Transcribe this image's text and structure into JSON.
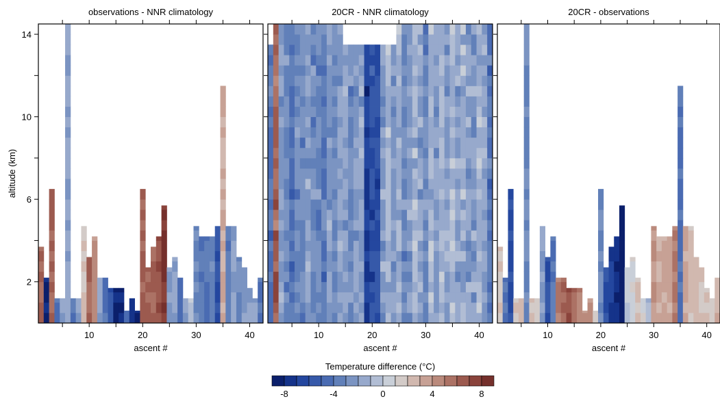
{
  "chart_data": {
    "type": "heatmap",
    "panels": [
      {
        "title": "observations - NNR climatology",
        "xlabel": "ascent #",
        "ylabel": "altitude (km)",
        "xlim": [
          0.5,
          42.5
        ],
        "ylim": [
          0,
          14.5
        ],
        "xticks": [
          10,
          20,
          30,
          40
        ],
        "yticks": [
          2,
          6,
          10,
          14
        ],
        "columns": [
          {
            "x": 1,
            "top": 3.7,
            "base": 6
          },
          {
            "x": 2,
            "top": 2.2,
            "base": -8
          },
          {
            "x": 3,
            "top": 6.5,
            "base": 6
          },
          {
            "x": 4,
            "top": 1.2,
            "base": -4
          },
          {
            "x": 5,
            "top": 1.2,
            "base": -2
          },
          {
            "x": 6,
            "top": 14.5,
            "base": -2
          },
          {
            "x": 7,
            "top": 1.2,
            "base": -4
          },
          {
            "x": 8,
            "top": 1.2,
            "base": -2
          },
          {
            "x": 9,
            "top": 4.7,
            "base": 2
          },
          {
            "x": 10,
            "top": 3.2,
            "base": 6
          },
          {
            "x": 11,
            "top": 4.2,
            "base": 4
          },
          {
            "x": 12,
            "top": 2.2,
            "base": -2
          },
          {
            "x": 13,
            "top": 2.2,
            "base": -4
          },
          {
            "x": 14,
            "top": 1.7,
            "base": -6
          },
          {
            "x": 15,
            "top": 1.7,
            "base": -8
          },
          {
            "x": 16,
            "top": 1.7,
            "base": -8
          },
          {
            "x": 17,
            "top": 0.6,
            "base": -4
          },
          {
            "x": 18,
            "top": 1.2,
            "base": -8
          },
          {
            "x": 19,
            "top": 0.6,
            "base": -8
          },
          {
            "x": 20,
            "top": 6.5,
            "base": 6
          },
          {
            "x": 21,
            "top": 2.7,
            "base": 6
          },
          {
            "x": 22,
            "top": 3.7,
            "base": 6
          },
          {
            "x": 23,
            "top": 4.2,
            "base": 7
          },
          {
            "x": 24,
            "top": 5.7,
            "base": 8
          },
          {
            "x": 25,
            "top": 2.7,
            "base": -2
          },
          {
            "x": 26,
            "top": 3.2,
            "base": -2
          },
          {
            "x": 27,
            "top": 2.2,
            "base": -4
          },
          {
            "x": 28,
            "top": 1.2,
            "base": -2
          },
          {
            "x": 29,
            "top": 1.2,
            "base": 0
          },
          {
            "x": 30,
            "top": 4.7,
            "base": -3
          },
          {
            "x": 31,
            "top": 4.2,
            "base": -4
          },
          {
            "x": 32,
            "top": 4.2,
            "base": -4
          },
          {
            "x": 33,
            "top": 4.2,
            "base": -3
          },
          {
            "x": 34,
            "top": 4.7,
            "base": -6
          },
          {
            "x": 35,
            "top": 11.5,
            "base": 3
          },
          {
            "x": 36,
            "top": 4.7,
            "base": -4
          },
          {
            "x": 37,
            "top": 4.7,
            "base": -2
          },
          {
            "x": 38,
            "top": 3.2,
            "base": -3
          },
          {
            "x": 39,
            "top": 2.7,
            "base": -2
          },
          {
            "x": 40,
            "top": 1.7,
            "base": -2
          },
          {
            "x": 41,
            "top": 1.2,
            "base": -2
          },
          {
            "x": 42,
            "top": 2.2,
            "base": -4
          }
        ]
      },
      {
        "title": "20CR - NNR climatology",
        "xlabel": "ascent #",
        "xlim": [
          0.5,
          42.5
        ],
        "ylim": [
          0,
          14.5
        ],
        "xticks": [
          10,
          20,
          30,
          40
        ],
        "yticks": [
          2,
          6,
          10,
          14
        ],
        "columns": [
          {
            "x": 1,
            "top": 13.5,
            "base": -4
          },
          {
            "x": 2,
            "top": 14.5,
            "base": 6
          },
          {
            "x": 3,
            "top": 14.5,
            "base": -2
          },
          {
            "x": 4,
            "top": 14.5,
            "base": -3
          },
          {
            "x": 5,
            "top": 14.5,
            "base": -4
          },
          {
            "x": 6,
            "top": 14.5,
            "base": -3
          },
          {
            "x": 7,
            "top": 14.5,
            "base": -3
          },
          {
            "x": 8,
            "top": 14.5,
            "base": -2
          },
          {
            "x": 9,
            "top": 14.5,
            "base": -3
          },
          {
            "x": 10,
            "top": 14.5,
            "base": -3
          },
          {
            "x": 11,
            "top": 14.5,
            "base": -4
          },
          {
            "x": 12,
            "top": 14.5,
            "base": -2
          },
          {
            "x": 13,
            "top": 14.5,
            "base": -3
          },
          {
            "x": 14,
            "top": 14.5,
            "base": -2
          },
          {
            "x": 15,
            "top": 13.5,
            "base": -2
          },
          {
            "x": 16,
            "top": 13.5,
            "base": -3
          },
          {
            "x": 17,
            "top": 13.5,
            "base": -2
          },
          {
            "x": 18,
            "top": 13.5,
            "base": -2
          },
          {
            "x": 19,
            "top": 13.5,
            "base": -7
          },
          {
            "x": 20,
            "top": 13.5,
            "base": -6
          },
          {
            "x": 21,
            "top": 13.5,
            "base": -6
          },
          {
            "x": 22,
            "top": 13.5,
            "base": -2
          },
          {
            "x": 23,
            "top": 13.5,
            "base": -1
          },
          {
            "x": 24,
            "top": 13.5,
            "base": -2
          },
          {
            "x": 25,
            "top": 14.5,
            "base": -1
          },
          {
            "x": 26,
            "top": 14.5,
            "base": -3
          },
          {
            "x": 27,
            "top": 14.5,
            "base": -2
          },
          {
            "x": 28,
            "top": 14.5,
            "base": -1
          },
          {
            "x": 29,
            "top": 14.5,
            "base": -2
          },
          {
            "x": 30,
            "top": 14.5,
            "base": -3
          },
          {
            "x": 31,
            "top": 14.5,
            "base": -1
          },
          {
            "x": 32,
            "top": 14.5,
            "base": -2
          },
          {
            "x": 33,
            "top": 14.5,
            "base": -1
          },
          {
            "x": 34,
            "top": 14.5,
            "base": -2
          },
          {
            "x": 35,
            "top": 14.5,
            "base": -1
          },
          {
            "x": 36,
            "top": 14.5,
            "base": -2
          },
          {
            "x": 37,
            "top": 14.5,
            "base": -1
          },
          {
            "x": 38,
            "top": 14.5,
            "base": -2
          },
          {
            "x": 39,
            "top": 14.5,
            "base": -2
          },
          {
            "x": 40,
            "top": 14.5,
            "base": -1
          },
          {
            "x": 41,
            "top": 14.5,
            "base": -2
          },
          {
            "x": 42,
            "top": 14.5,
            "base": -4
          }
        ]
      },
      {
        "title": "20CR - observations",
        "xlabel": "ascent #",
        "xlim": [
          0.5,
          42.5
        ],
        "ylim": [
          0,
          14.5
        ],
        "xticks": [
          10,
          20,
          30,
          40
        ],
        "yticks": [
          2,
          6,
          10,
          14
        ],
        "columns": [
          {
            "x": 1,
            "top": 3.7,
            "base": 2
          },
          {
            "x": 2,
            "top": 2.2,
            "base": -4
          },
          {
            "x": 3,
            "top": 6.5,
            "base": -6
          },
          {
            "x": 4,
            "top": 1.2,
            "base": 2
          },
          {
            "x": 5,
            "top": 1.2,
            "base": 2
          },
          {
            "x": 6,
            "top": 14.5,
            "base": -3
          },
          {
            "x": 7,
            "top": 1.2,
            "base": 2
          },
          {
            "x": 8,
            "top": 1.2,
            "base": 1
          },
          {
            "x": 9,
            "top": 4.7,
            "base": -2
          },
          {
            "x": 10,
            "top": 3.2,
            "base": -6
          },
          {
            "x": 11,
            "top": 4.2,
            "base": -4
          },
          {
            "x": 12,
            "top": 2.2,
            "base": 5
          },
          {
            "x": 13,
            "top": 2.2,
            "base": 6
          },
          {
            "x": 14,
            "top": 1.7,
            "base": 7
          },
          {
            "x": 15,
            "top": 1.7,
            "base": 6
          },
          {
            "x": 16,
            "top": 1.7,
            "base": 5
          },
          {
            "x": 17,
            "top": 0.6,
            "base": 4
          },
          {
            "x": 18,
            "top": 1.2,
            "base": 4
          },
          {
            "x": 19,
            "top": 0.6,
            "base": 2
          },
          {
            "x": 20,
            "top": 6.5,
            "base": -3
          },
          {
            "x": 21,
            "top": 2.7,
            "base": -6
          },
          {
            "x": 22,
            "top": 3.7,
            "base": -7
          },
          {
            "x": 23,
            "top": 4.2,
            "base": -8
          },
          {
            "x": 24,
            "top": 5.7,
            "base": -9
          },
          {
            "x": 25,
            "top": 2.7,
            "base": 0
          },
          {
            "x": 26,
            "top": 3.2,
            "base": 1
          },
          {
            "x": 27,
            "top": 2.2,
            "base": 2
          },
          {
            "x": 28,
            "top": 1.2,
            "base": 1
          },
          {
            "x": 29,
            "top": 1.2,
            "base": -1
          },
          {
            "x": 30,
            "top": 4.7,
            "base": 4
          },
          {
            "x": 31,
            "top": 4.2,
            "base": 3
          },
          {
            "x": 32,
            "top": 4.2,
            "base": 3
          },
          {
            "x": 33,
            "top": 4.2,
            "base": 3
          },
          {
            "x": 34,
            "top": 4.7,
            "base": 5
          },
          {
            "x": 35,
            "top": 11.5,
            "base": -4
          },
          {
            "x": 36,
            "top": 4.7,
            "base": 3
          },
          {
            "x": 37,
            "top": 4.7,
            "base": 2
          },
          {
            "x": 38,
            "top": 3.2,
            "base": 3
          },
          {
            "x": 39,
            "top": 2.7,
            "base": 2
          },
          {
            "x": 40,
            "top": 1.7,
            "base": 2
          },
          {
            "x": 41,
            "top": 1.2,
            "base": 1
          },
          {
            "x": 42,
            "top": 2.2,
            "base": 3
          }
        ]
      }
    ],
    "colorbar": {
      "label": "Temperature difference (°C)",
      "range": [
        -9,
        9
      ],
      "bin_width": 1,
      "ticks": [
        -8,
        -4,
        0,
        4,
        8
      ],
      "colors": [
        "#0b1f6b",
        "#15338a",
        "#24479f",
        "#3659a9",
        "#4a6bb2",
        "#6180b9",
        "#7b94c2",
        "#97a9cc",
        "#b1bdd4",
        "#c9cfd8",
        "#d3cbc8",
        "#d1b8af",
        "#c7a195",
        "#ba8a7c",
        "#ac7265",
        "#9c5a4f",
        "#8a433b",
        "#75302c"
      ]
    }
  }
}
